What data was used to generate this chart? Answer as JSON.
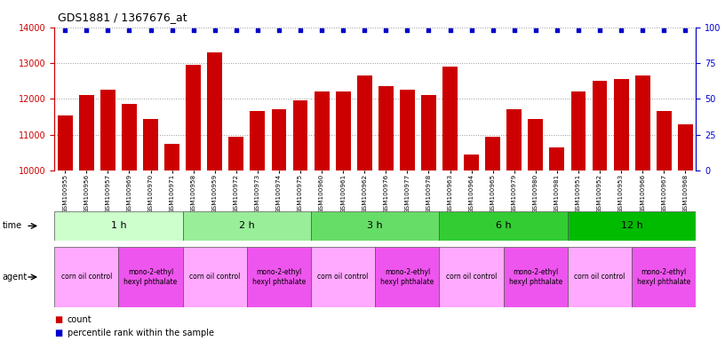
{
  "title": "GDS1881 / 1367676_at",
  "samples": [
    "GSM100955",
    "GSM100956",
    "GSM100957",
    "GSM100969",
    "GSM100970",
    "GSM100971",
    "GSM100958",
    "GSM100959",
    "GSM100972",
    "GSM100973",
    "GSM100974",
    "GSM100975",
    "GSM100960",
    "GSM100961",
    "GSM100962",
    "GSM100976",
    "GSM100977",
    "GSM100978",
    "GSM100963",
    "GSM100964",
    "GSM100965",
    "GSM100979",
    "GSM100980",
    "GSM100981",
    "GSM100951",
    "GSM100952",
    "GSM100953",
    "GSM100966",
    "GSM100967",
    "GSM100968"
  ],
  "values": [
    11550,
    12100,
    12250,
    11850,
    11450,
    10750,
    12950,
    13300,
    10950,
    11650,
    11700,
    11950,
    12200,
    12200,
    12650,
    12350,
    12250,
    12100,
    12900,
    10450,
    10950,
    11700,
    11450,
    10650,
    12200,
    12500,
    12550,
    12650,
    11650,
    11300
  ],
  "bar_color": "#cc0000",
  "percentile_color": "#0000cc",
  "ymin": 10000,
  "ymax": 14000,
  "yticks": [
    10000,
    11000,
    12000,
    13000,
    14000
  ],
  "y2ticks": [
    0,
    25,
    50,
    75,
    100
  ],
  "time_groups": [
    {
      "label": "1 h",
      "start": 0,
      "end": 6,
      "color": "#ccffcc"
    },
    {
      "label": "2 h",
      "start": 6,
      "end": 12,
      "color": "#99ee99"
    },
    {
      "label": "3 h",
      "start": 12,
      "end": 18,
      "color": "#66dd66"
    },
    {
      "label": "6 h",
      "start": 18,
      "end": 24,
      "color": "#33cc33"
    },
    {
      "label": "12 h",
      "start": 24,
      "end": 30,
      "color": "#00bb00"
    }
  ],
  "agent_groups": [
    {
      "label": "corn oil control",
      "start": 0,
      "end": 3,
      "color": "#ffaaff"
    },
    {
      "label": "mono-2-ethyl\nhexyl phthalate",
      "start": 3,
      "end": 6,
      "color": "#ee55ee"
    },
    {
      "label": "corn oil control",
      "start": 6,
      "end": 9,
      "color": "#ffaaff"
    },
    {
      "label": "mono-2-ethyl\nhexyl phthalate",
      "start": 9,
      "end": 12,
      "color": "#ee55ee"
    },
    {
      "label": "corn oil control",
      "start": 12,
      "end": 15,
      "color": "#ffaaff"
    },
    {
      "label": "mono-2-ethyl\nhexyl phthalate",
      "start": 15,
      "end": 18,
      "color": "#ee55ee"
    },
    {
      "label": "corn oil control",
      "start": 18,
      "end": 21,
      "color": "#ffaaff"
    },
    {
      "label": "mono-2-ethyl\nhexyl phthalate",
      "start": 21,
      "end": 24,
      "color": "#ee55ee"
    },
    {
      "label": "corn oil control",
      "start": 24,
      "end": 27,
      "color": "#ffaaff"
    },
    {
      "label": "mono-2-ethyl\nhexyl phthalate",
      "start": 27,
      "end": 30,
      "color": "#ee55ee"
    }
  ],
  "background_color": "#ffffff"
}
